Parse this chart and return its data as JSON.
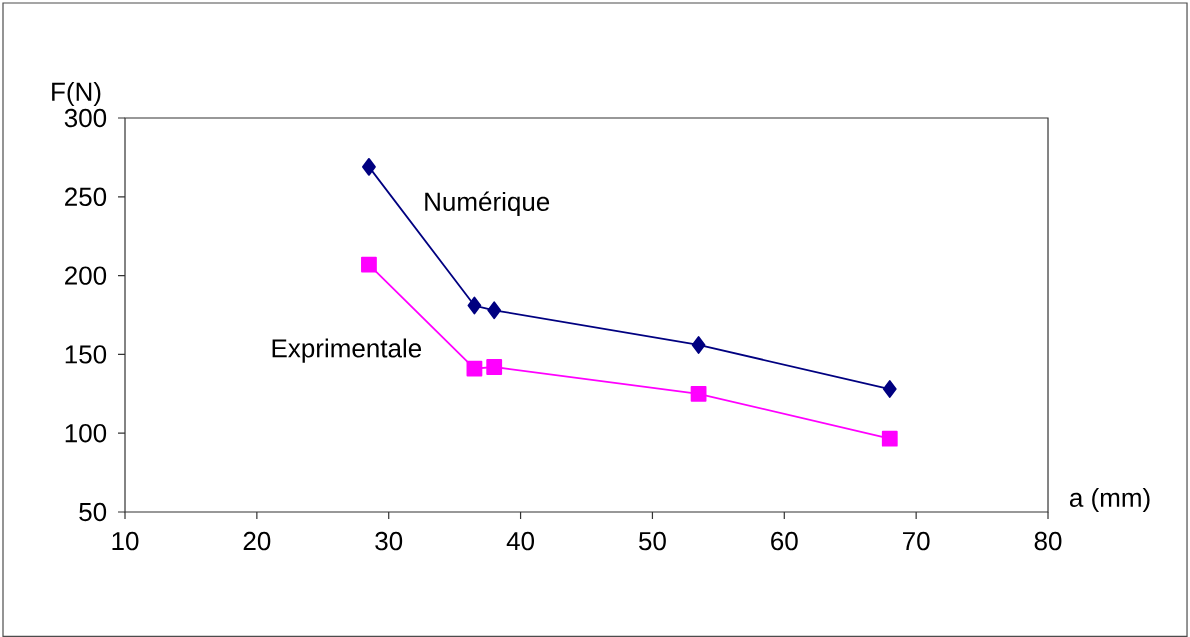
{
  "chart_data": {
    "type": "line",
    "xlabel": "a (mm)",
    "ylabel": "F(N)",
    "xlim": [
      10,
      80
    ],
    "xticks": [
      10,
      20,
      30,
      40,
      50,
      60,
      70,
      80
    ],
    "ylim": [
      50,
      300
    ],
    "yticks": [
      50,
      100,
      150,
      200,
      250,
      300
    ],
    "grid": false,
    "series": [
      {
        "name": "Numérique",
        "color": "#000080",
        "marker": "diamond",
        "x": [
          28.5,
          36.5,
          38,
          53.5,
          68
        ],
        "values": [
          269,
          181,
          178,
          156,
          128
        ]
      },
      {
        "name": "Exprimentale",
        "color": "#ff00ff",
        "marker": "square",
        "x": [
          28.5,
          36.5,
          38,
          53.5,
          68
        ],
        "values": [
          207,
          141,
          142,
          125,
          96.5
        ]
      }
    ]
  }
}
